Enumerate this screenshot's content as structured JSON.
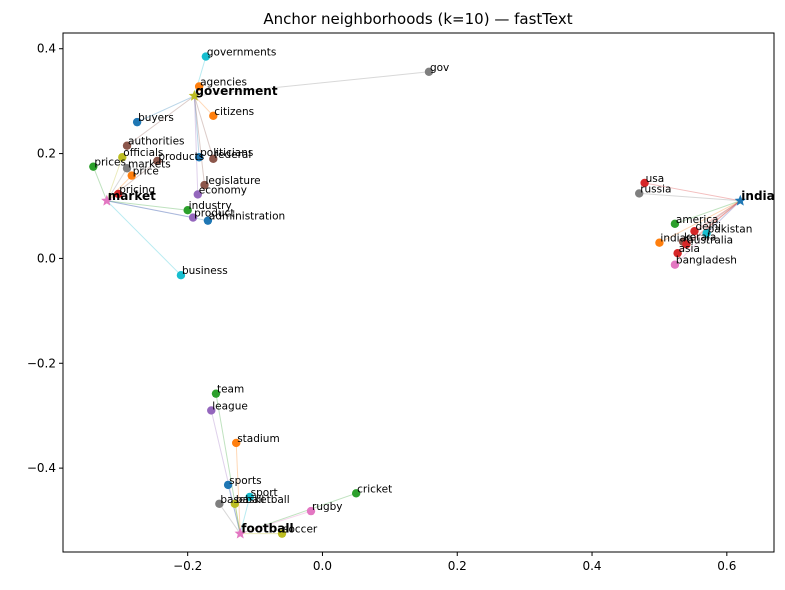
{
  "chart_data": {
    "type": "scatter",
    "title": "Anchor neighborhoods (k=10) — fastText",
    "xlabel": "",
    "ylabel": "",
    "xlim": [
      -0.385,
      0.67
    ],
    "ylim": [
      -0.56,
      0.43
    ],
    "xticks": [
      -0.2,
      0.0,
      0.2,
      0.4,
      0.6
    ],
    "xtick_labels": [
      "−0.2",
      "0.0",
      "0.2",
      "0.4",
      "0.6"
    ],
    "yticks": [
      -0.4,
      -0.2,
      0.0,
      0.2,
      0.4
    ],
    "ytick_labels": [
      "−0.4",
      "−0.2",
      "0.0",
      "0.2",
      "0.4"
    ],
    "grid": false,
    "anchors": [
      {
        "word": "government",
        "x": -0.19,
        "y": 0.31,
        "color": "#bcbd22",
        "neighbors": [
          {
            "word": "governments",
            "x": -0.173,
            "y": 0.385,
            "color": "#17becf"
          },
          {
            "word": "agencies",
            "x": -0.183,
            "y": 0.328,
            "color": "#ff7f0e"
          },
          {
            "word": "gov",
            "x": 0.158,
            "y": 0.356,
            "color": "#7f7f7f"
          },
          {
            "word": "citizens",
            "x": -0.162,
            "y": 0.272,
            "color": "#ff7f0e"
          },
          {
            "word": "buyers",
            "x": -0.275,
            "y": 0.26,
            "color": "#1f77b4"
          },
          {
            "word": "authorities",
            "x": -0.29,
            "y": 0.215,
            "color": "#8c564b"
          },
          {
            "word": "politicians",
            "x": -0.183,
            "y": 0.193,
            "color": "#1f77b4"
          },
          {
            "word": "federal",
            "x": -0.162,
            "y": 0.19,
            "color": "#8c564b"
          },
          {
            "word": "legislature",
            "x": -0.175,
            "y": 0.14,
            "color": "#8c564b"
          },
          {
            "word": "economy",
            "x": -0.185,
            "y": 0.122,
            "color": "#9467bd"
          }
        ]
      },
      {
        "word": "market",
        "x": -0.32,
        "y": 0.11,
        "color": "#e377c2",
        "neighbors": [
          {
            "word": "prices",
            "x": -0.34,
            "y": 0.175,
            "color": "#2ca02c"
          },
          {
            "word": "officials",
            "x": -0.297,
            "y": 0.193,
            "color": "#bcbd22"
          },
          {
            "word": "products",
            "x": -0.245,
            "y": 0.186,
            "color": "#8c564b"
          },
          {
            "word": "markets",
            "x": -0.29,
            "y": 0.172,
            "color": "#7f7f7f"
          },
          {
            "word": "price",
            "x": -0.283,
            "y": 0.158,
            "color": "#ff7f0e"
          },
          {
            "word": "pricing",
            "x": -0.303,
            "y": 0.123,
            "color": "#d62728"
          },
          {
            "word": "industry",
            "x": -0.2,
            "y": 0.092,
            "color": "#2ca02c"
          },
          {
            "word": "product",
            "x": -0.192,
            "y": 0.078,
            "color": "#9467bd"
          },
          {
            "word": "administration",
            "x": -0.17,
            "y": 0.072,
            "color": "#1f77b4"
          },
          {
            "word": "business",
            "x": -0.21,
            "y": -0.032,
            "color": "#17becf"
          }
        ]
      },
      {
        "word": "india",
        "x": 0.62,
        "y": 0.11,
        "color": "#1f77b4",
        "neighbors": [
          {
            "word": "usa",
            "x": 0.478,
            "y": 0.144,
            "color": "#d62728"
          },
          {
            "word": "russia",
            "x": 0.47,
            "y": 0.124,
            "color": "#7f7f7f"
          },
          {
            "word": "america",
            "x": 0.523,
            "y": 0.066,
            "color": "#2ca02c"
          },
          {
            "word": "delhi",
            "x": 0.552,
            "y": 0.052,
            "color": "#d62728"
          },
          {
            "word": "pakistan",
            "x": 0.57,
            "y": 0.048,
            "color": "#17becf"
          },
          {
            "word": "indian",
            "x": 0.5,
            "y": 0.03,
            "color": "#ff7f0e"
          },
          {
            "word": "kerala",
            "x": 0.535,
            "y": 0.032,
            "color": "#8c564b"
          },
          {
            "word": "australia",
            "x": 0.54,
            "y": 0.027,
            "color": "#d62728"
          },
          {
            "word": "asia",
            "x": 0.527,
            "y": 0.01,
            "color": "#d62728"
          },
          {
            "word": "bangladesh",
            "x": 0.523,
            "y": -0.012,
            "color": "#e377c2"
          }
        ]
      },
      {
        "word": "football",
        "x": -0.122,
        "y": -0.525,
        "color": "#e377c2",
        "neighbors": [
          {
            "word": "team",
            "x": -0.158,
            "y": -0.258,
            "color": "#2ca02c"
          },
          {
            "word": "league",
            "x": -0.165,
            "y": -0.29,
            "color": "#9467bd"
          },
          {
            "word": "stadium",
            "x": -0.128,
            "y": -0.352,
            "color": "#ff7f0e"
          },
          {
            "word": "sports",
            "x": -0.14,
            "y": -0.432,
            "color": "#1f77b4"
          },
          {
            "word": "cricket",
            "x": 0.05,
            "y": -0.448,
            "color": "#2ca02c"
          },
          {
            "word": "sport",
            "x": -0.108,
            "y": -0.455,
            "color": "#17becf"
          },
          {
            "word": "baseball",
            "x": -0.153,
            "y": -0.468,
            "color": "#7f7f7f"
          },
          {
            "word": "basketball",
            "x": -0.13,
            "y": -0.468,
            "color": "#bcbd22"
          },
          {
            "word": "rugby",
            "x": -0.017,
            "y": -0.482,
            "color": "#e377c2"
          },
          {
            "word": "soccer",
            "x": -0.06,
            "y": -0.525,
            "color": "#bcbd22"
          }
        ]
      }
    ]
  }
}
